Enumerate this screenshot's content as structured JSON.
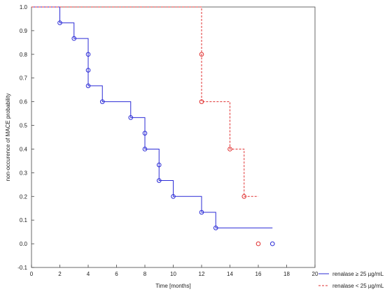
{
  "chart_data": {
    "type": "line",
    "chart_style": "kaplan-meier step plot",
    "xlabel": "Time [months]",
    "ylabel": "non-occurence of MACE probability",
    "xlim": [
      0,
      20
    ],
    "ylim": [
      -0.1,
      1.0
    ],
    "x_ticks": [
      "0",
      "2",
      "4",
      "6",
      "8",
      "10",
      "12",
      "14",
      "16",
      "18",
      "20"
    ],
    "y_ticks": [
      "1.0",
      "0.9",
      "0.8",
      "0.7",
      "0.6",
      "0.5",
      "0.4",
      "0.3",
      "0.2",
      "0.1",
      "0.0",
      "-0.1"
    ],
    "grid": false,
    "legend_position": "bottom-right",
    "series": [
      {
        "name": "renalase ≥ 25 µg/mL",
        "color": "#2b2bd6",
        "line_style": "solid",
        "steps": [
          [
            0,
            1.0
          ],
          [
            2,
            0.933
          ],
          [
            3,
            0.867
          ],
          [
            4,
            0.667
          ],
          [
            5,
            0.6
          ],
          [
            7,
            0.533
          ],
          [
            8,
            0.4
          ],
          [
            9,
            0.267
          ],
          [
            10,
            0.2
          ],
          [
            12,
            0.133
          ],
          [
            13,
            0.067
          ],
          [
            17,
            0.067
          ]
        ],
        "censor_marks": [
          [
            2,
            0.933
          ],
          [
            3,
            0.867
          ],
          [
            4,
            0.8
          ],
          [
            4,
            0.733
          ],
          [
            4,
            0.667
          ],
          [
            5,
            0.6
          ],
          [
            7,
            0.533
          ],
          [
            8,
            0.467
          ],
          [
            8,
            0.4
          ],
          [
            9,
            0.333
          ],
          [
            9,
            0.267
          ],
          [
            10,
            0.2
          ],
          [
            12,
            0.133
          ],
          [
            13,
            0.067
          ],
          [
            17,
            0.0
          ]
        ]
      },
      {
        "name": "renalase < 25 µg/mL",
        "color": "#e03030",
        "line_style": "dashed",
        "steps": [
          [
            0,
            1.0
          ],
          [
            12,
            0.6
          ],
          [
            14,
            0.4
          ],
          [
            15,
            0.2
          ],
          [
            16,
            0.2
          ]
        ],
        "censor_marks": [
          [
            12,
            0.8
          ],
          [
            12,
            0.6
          ],
          [
            14,
            0.4
          ],
          [
            15,
            0.2
          ],
          [
            16,
            0.0
          ]
        ]
      }
    ]
  }
}
